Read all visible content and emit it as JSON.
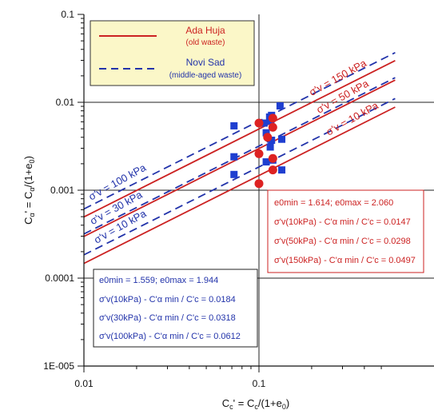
{
  "chart_data": {
    "type": "scatter",
    "x_scale": "log",
    "y_scale": "log",
    "xlim": [
      0.01,
      0.5
    ],
    "ylim": [
      1e-05,
      0.1
    ],
    "xlabel": "C_c' = C_c/(1+e_0)",
    "ylabel": "C_α' = C_α/(1+e_0)",
    "x_ticks": [
      {
        "value": 0.01,
        "label": "0.01"
      },
      {
        "value": 0.1,
        "label": "0.1"
      }
    ],
    "y_ticks": [
      {
        "value": 1e-05,
        "label": "1E-005"
      },
      {
        "value": 0.0001,
        "label": "0.0001"
      },
      {
        "value": 0.001,
        "label": "0.001"
      },
      {
        "value": 0.01,
        "label": "0.01"
      },
      {
        "value": 0.1,
        "label": "0.1"
      }
    ],
    "grid": "major decades",
    "legend": {
      "position": "top-left",
      "entries": [
        {
          "name": "Ada Huja",
          "sub": "(old waste)",
          "color": "#cc2222",
          "style": "solid"
        },
        {
          "name": "Novi Sad",
          "sub": "(middle-aged waste)",
          "color": "#2233aa",
          "style": "dashed"
        }
      ]
    },
    "series": [
      {
        "name": "Novi Sad",
        "marker": "square",
        "color": "#1f3fd0",
        "points": [
          {
            "x": 0.072,
            "y": 0.0054
          },
          {
            "x": 0.072,
            "y": 0.0024
          },
          {
            "x": 0.072,
            "y": 0.00151
          },
          {
            "x": 0.107,
            "y": 0.0058
          },
          {
            "x": 0.11,
            "y": 0.0045
          },
          {
            "x": 0.115,
            "y": 0.0068
          },
          {
            "x": 0.118,
            "y": 0.0071
          },
          {
            "x": 0.117,
            "y": 0.0061
          },
          {
            "x": 0.118,
            "y": 0.0037
          },
          {
            "x": 0.116,
            "y": 0.0031
          },
          {
            "x": 0.11,
            "y": 0.0021
          },
          {
            "x": 0.12,
            "y": 0.0022
          },
          {
            "x": 0.132,
            "y": 0.0091
          },
          {
            "x": 0.135,
            "y": 0.0038
          },
          {
            "x": 0.135,
            "y": 0.0017
          }
        ]
      },
      {
        "name": "Ada Huja",
        "marker": "circle",
        "color": "#dd2222",
        "points": [
          {
            "x": 0.1,
            "y": 0.0058
          },
          {
            "x": 0.12,
            "y": 0.0066
          },
          {
            "x": 0.12,
            "y": 0.0052
          },
          {
            "x": 0.1,
            "y": 0.0026
          },
          {
            "x": 0.112,
            "y": 0.004
          },
          {
            "x": 0.12,
            "y": 0.0023
          },
          {
            "x": 0.12,
            "y": 0.0017
          },
          {
            "x": 0.1,
            "y": 0.00119
          }
        ]
      }
    ],
    "lines": [
      {
        "group": "Novi Sad",
        "ratio": 0.0612,
        "style": "dashed",
        "color": "#2233aa",
        "label": "σ'v = 100 kPa"
      },
      {
        "group": "Novi Sad",
        "ratio": 0.0318,
        "style": "dashed",
        "color": "#2233aa",
        "label": "σ'v = 30 kPa"
      },
      {
        "group": "Novi Sad",
        "ratio": 0.0184,
        "style": "dashed",
        "color": "#2233aa",
        "label": "σ'v = 10 kPa"
      },
      {
        "group": "Ada Huja",
        "ratio": 0.0497,
        "style": "solid",
        "color": "#cc2222",
        "label": "σ'v = 150 kPa"
      },
      {
        "group": "Ada Huja",
        "ratio": 0.0298,
        "style": "solid",
        "color": "#cc2222",
        "label": "σ'v = 50 kPa"
      },
      {
        "group": "Ada Huja",
        "ratio": 0.0147,
        "style": "solid",
        "color": "#cc2222",
        "label": "σ'v = 10 kPa"
      }
    ],
    "annotations": {
      "red_box": {
        "color": "#cc2222",
        "lines": [
          "e0min = 1.614;  e0max = 2.060",
          "σ'v(10kPa) - C'α min / C'c = 0.0147",
          "σ'v(50kPa) - C'α min / C'c = 0.0298",
          "σ'v(150kPa) - C'α min / C'c = 0.0497"
        ]
      },
      "blue_box": {
        "color": "#2233aa",
        "lines": [
          "e0min = 1.559;  e0max = 1.944",
          "σ'v(10kPa) - C'α min / C'c = 0.0184",
          "σ'v(30kPa) - C'α min / C'c = 0.0318",
          "σ'v(100kPa) - C'α min / C'c = 0.0612"
        ]
      }
    }
  }
}
